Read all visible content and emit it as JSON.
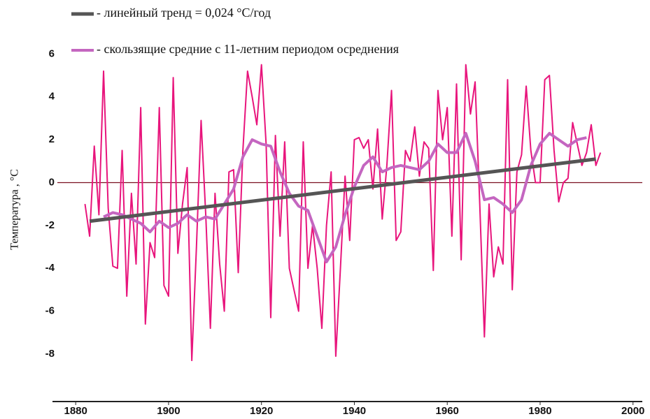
{
  "chart_data": {
    "type": "line",
    "y_label": "Температура , °С",
    "xlim": [
      1875,
      2002
    ],
    "xticks": [
      1880,
      1900,
      1920,
      1940,
      1960,
      1980,
      2000
    ],
    "ylim": [
      -9.5,
      6.5
    ],
    "yticks": [
      6,
      4,
      2,
      0,
      -2,
      -4,
      -6,
      -8
    ],
    "grid": false,
    "series": [
      {
        "name": "- линейный тренд = 0,024 °С/год",
        "color": "#555555",
        "width": 5,
        "x": [
          1883,
          1992
        ],
        "values": [
          -1.8,
          1.1
        ]
      },
      {
        "name": "- скользящие средние с 11-летним периодом осреднения",
        "color": "#c466c0",
        "width": 4,
        "x": [
          1886,
          1888,
          1890,
          1892,
          1894,
          1896,
          1898,
          1900,
          1902,
          1904,
          1906,
          1908,
          1910,
          1912,
          1914,
          1916,
          1918,
          1920,
          1922,
          1924,
          1926,
          1928,
          1930,
          1932,
          1934,
          1936,
          1938,
          1940,
          1942,
          1944,
          1946,
          1948,
          1950,
          1952,
          1954,
          1956,
          1958,
          1960,
          1962,
          1964,
          1966,
          1968,
          1970,
          1972,
          1974,
          1976,
          1978,
          1980,
          1982,
          1984,
          1986,
          1988,
          1990
        ],
        "values": [
          -1.6,
          -1.4,
          -1.5,
          -1.7,
          -1.9,
          -2.3,
          -1.8,
          -2.1,
          -1.9,
          -1.5,
          -1.8,
          -1.6,
          -1.7,
          -1.0,
          -0.3,
          1.2,
          2.0,
          1.8,
          1.7,
          0.5,
          -0.5,
          -1.1,
          -1.3,
          -2.5,
          -3.7,
          -3.0,
          -1.5,
          -0.2,
          0.8,
          1.2,
          0.5,
          0.7,
          0.8,
          0.7,
          0.6,
          1.0,
          1.8,
          1.4,
          1.4,
          2.3,
          1.0,
          -0.8,
          -0.7,
          -1.0,
          -1.4,
          -0.8,
          0.8,
          1.8,
          2.3,
          2.0,
          1.7,
          2.0,
          2.1
        ]
      },
      {
        "color": "#e8157c",
        "width": 2,
        "x": [
          1882,
          1883,
          1884,
          1885,
          1886,
          1887,
          1888,
          1889,
          1890,
          1891,
          1892,
          1893,
          1894,
          1895,
          1896,
          1897,
          1898,
          1899,
          1900,
          1901,
          1902,
          1903,
          1904,
          1905,
          1906,
          1907,
          1908,
          1909,
          1910,
          1911,
          1912,
          1913,
          1914,
          1915,
          1916,
          1917,
          1918,
          1919,
          1920,
          1921,
          1922,
          1923,
          1924,
          1925,
          1926,
          1927,
          1928,
          1929,
          1930,
          1931,
          1932,
          1933,
          1934,
          1935,
          1936,
          1937,
          1938,
          1939,
          1940,
          1941,
          1942,
          1943,
          1944,
          1945,
          1946,
          1947,
          1948,
          1949,
          1950,
          1951,
          1952,
          1953,
          1954,
          1955,
          1956,
          1957,
          1958,
          1959,
          1960,
          1961,
          1962,
          1963,
          1964,
          1965,
          1966,
          1967,
          1968,
          1969,
          1970,
          1971,
          1972,
          1973,
          1974,
          1975,
          1976,
          1977,
          1978,
          1979,
          1980,
          1981,
          1982,
          1983,
          1984,
          1985,
          1986,
          1987,
          1988,
          1989,
          1990,
          1991,
          1992,
          1993
        ],
        "values": [
          -1.0,
          -2.5,
          1.7,
          -1.5,
          5.2,
          -1.2,
          -3.9,
          -4.0,
          1.5,
          -5.3,
          -0.5,
          -3.8,
          3.5,
          -6.6,
          -2.8,
          -3.5,
          3.5,
          -4.8,
          -5.3,
          4.9,
          -3.3,
          -1.0,
          0.7,
          -8.3,
          -3.0,
          2.9,
          -1.5,
          -6.8,
          -0.5,
          -3.8,
          -6.0,
          0.5,
          0.6,
          -4.2,
          1.5,
          5.2,
          4.0,
          2.7,
          5.5,
          1.8,
          -6.3,
          2.2,
          -2.5,
          1.9,
          -4.0,
          -5.0,
          -6.0,
          1.9,
          -4.0,
          -2.0,
          -4.0,
          -6.8,
          -2.0,
          0.5,
          -8.1,
          -4.0,
          0.3,
          -2.7,
          2.0,
          2.1,
          1.6,
          2.0,
          -0.3,
          2.5,
          -1.7,
          0.8,
          4.3,
          -2.7,
          -2.3,
          1.5,
          1.0,
          2.6,
          0.3,
          1.9,
          1.6,
          -4.1,
          4.3,
          2.0,
          3.5,
          -2.5,
          4.6,
          -3.6,
          5.5,
          3.2,
          4.7,
          -1.0,
          -7.2,
          -1.0,
          -4.4,
          -3.0,
          -3.8,
          4.8,
          -5.0,
          0.5,
          1.3,
          4.5,
          1.5,
          0.0,
          0.0,
          4.8,
          5.0,
          1.5,
          -0.9,
          0.0,
          0.2,
          2.8,
          1.8,
          0.8,
          1.4,
          2.7,
          0.8,
          1.4
        ]
      }
    ]
  }
}
